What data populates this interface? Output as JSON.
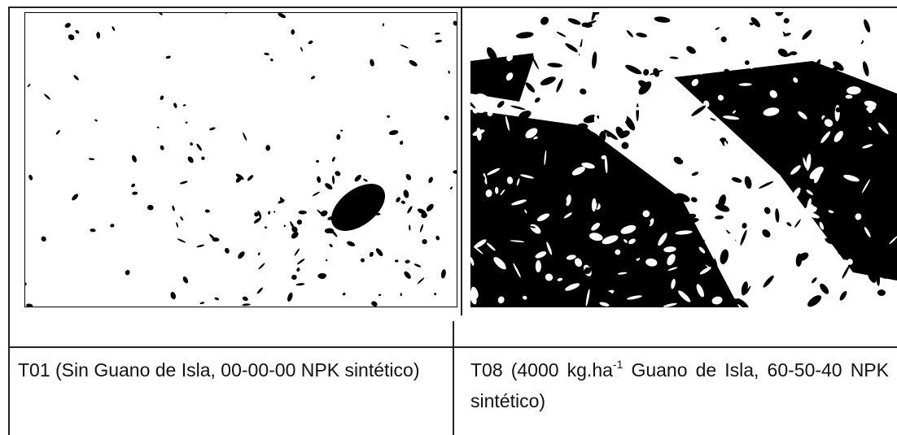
{
  "table": {
    "rows": [
      [
        {
          "caption": "T01 (Sin Guano de Isla, 00-00-00 NPK sintético)"
        },
        {
          "caption_parts": [
            "T08 (4000 kg.ha",
            "-1",
            " Guano de Isla, 60-50-40 NPK sintético)"
          ]
        }
      ]
    ]
  }
}
